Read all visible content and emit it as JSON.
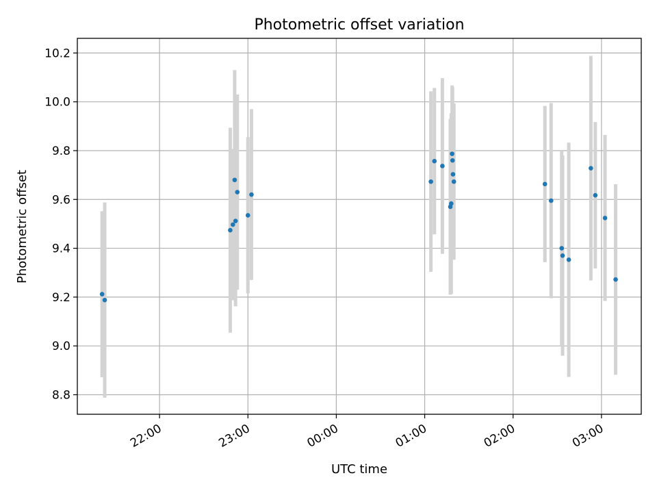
{
  "chart_data": {
    "type": "scatter",
    "title": "Photometric offset variation",
    "xlabel": "UTC time",
    "ylabel": "Photometric offset",
    "x_unit": "UTC time (hours past 00:00, negative = previous day)",
    "xlim": [
      -2.93,
      3.45
    ],
    "ylim": [
      8.72,
      10.26
    ],
    "xticks": [
      {
        "value": -2.0,
        "label": "22:00"
      },
      {
        "value": -1.0,
        "label": "23:00"
      },
      {
        "value": 0.0,
        "label": "00:00"
      },
      {
        "value": 1.0,
        "label": "01:00"
      },
      {
        "value": 2.0,
        "label": "02:00"
      },
      {
        "value": 3.0,
        "label": "03:00"
      }
    ],
    "yticks": [
      8.8,
      9.0,
      9.2,
      9.4,
      9.6,
      9.8,
      10.0,
      10.2
    ],
    "grid": true,
    "point_color": "#1f77b4",
    "errorbar_color": "#d3d3d3",
    "points": [
      {
        "x": -2.65,
        "y": 9.212,
        "err": 0.34
      },
      {
        "x": -2.62,
        "y": 9.188,
        "err": 0.4
      },
      {
        "x": -1.2,
        "y": 9.474,
        "err": 0.42
      },
      {
        "x": -1.17,
        "y": 9.497,
        "err": 0.31
      },
      {
        "x": -1.15,
        "y": 9.68,
        "err": 0.45
      },
      {
        "x": -1.14,
        "y": 9.512,
        "err": 0.35
      },
      {
        "x": -1.12,
        "y": 9.63,
        "err": 0.4
      },
      {
        "x": -1.0,
        "y": 9.535,
        "err": 0.32
      },
      {
        "x": -0.96,
        "y": 9.62,
        "err": 0.35
      },
      {
        "x": 1.07,
        "y": 9.673,
        "err": 0.37
      },
      {
        "x": 1.11,
        "y": 9.757,
        "err": 0.3
      },
      {
        "x": 1.2,
        "y": 9.737,
        "err": 0.36
      },
      {
        "x": 1.29,
        "y": 9.57,
        "err": 0.36
      },
      {
        "x": 1.3,
        "y": 9.583,
        "err": 0.37
      },
      {
        "x": 1.31,
        "y": 9.787,
        "err": 0.28
      },
      {
        "x": 1.315,
        "y": 9.76,
        "err": 0.3
      },
      {
        "x": 1.32,
        "y": 9.703,
        "err": 0.26
      },
      {
        "x": 1.33,
        "y": 9.673,
        "err": 0.32
      },
      {
        "x": 2.36,
        "y": 9.663,
        "err": 0.32
      },
      {
        "x": 2.43,
        "y": 9.595,
        "err": 0.4
      },
      {
        "x": 2.55,
        "y": 9.4,
        "err": 0.4
      },
      {
        "x": 2.56,
        "y": 9.37,
        "err": 0.41
      },
      {
        "x": 2.63,
        "y": 9.353,
        "err": 0.48
      },
      {
        "x": 2.88,
        "y": 9.728,
        "err": 0.46
      },
      {
        "x": 2.93,
        "y": 9.617,
        "err": 0.3
      },
      {
        "x": 3.04,
        "y": 9.524,
        "err": 0.34
      },
      {
        "x": 3.16,
        "y": 9.272,
        "err": 0.39
      }
    ]
  }
}
